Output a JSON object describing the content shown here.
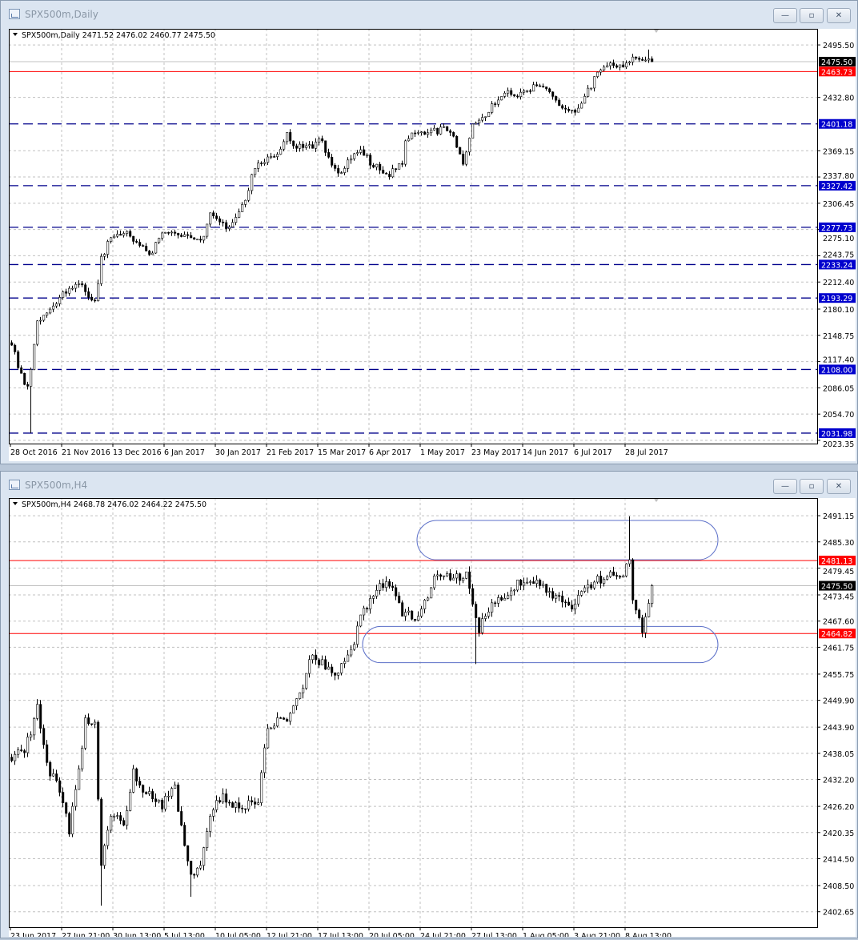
{
  "windows": [
    {
      "title": "SPX500m,Daily",
      "header": "SPX500m,Daily  2471.52 2476.02 2460.77 2475.50",
      "buttons": {
        "minimize": "—",
        "restore": "▫",
        "close": "✕"
      }
    },
    {
      "title": "SPX500m,H4",
      "header": "SPX500m,H4  2468.78 2476.02 2464.22 2475.50",
      "buttons": {
        "minimize": "—",
        "restore": "▫",
        "close": "✕"
      }
    }
  ],
  "colors": {
    "bid_line": "#c0c0c0",
    "red_line": "#ff0000",
    "blue_line": "#00008b",
    "grid": "#c0c0c0",
    "annotation": "#5b6fc8",
    "candle": "#000000"
  },
  "chart_data": [
    {
      "type": "candlestick",
      "symbol": "SPX500m",
      "timeframe": "Daily",
      "ohlc_last": {
        "open": 2471.52,
        "high": 2476.02,
        "low": 2460.77,
        "close": 2475.5
      },
      "ylim": [
        2019.5,
        2514.7
      ],
      "grid": true,
      "y_ticks": [
        "2495.50",
        "2432.80",
        "2369.15",
        "2337.80",
        "2306.45",
        "2275.10",
        "2243.75",
        "2212.40",
        "2180.10",
        "2148.75",
        "2117.40",
        "2086.05",
        "2054.70",
        "2023.35"
      ],
      "x_ticks": [
        "28 Oct 2016",
        "21 Nov 2016",
        "13 Dec 2016",
        "6 Jan 2017",
        "30 Jan 2017",
        "21 Feb 2017",
        "15 Mar 2017",
        "6 Apr 2017",
        "1 May 2017",
        "23 May 2017",
        "14 Jun 2017",
        "6 Jul 2017",
        "28 Jul 2017"
      ],
      "bars_per_x_tick": 16,
      "key_closes": [
        [
          0,
          2137
        ],
        [
          2,
          2110
        ],
        [
          4,
          2090
        ],
        [
          5,
          2088
        ],
        [
          6,
          2108
        ],
        [
          8,
          2166
        ],
        [
          12,
          2180
        ],
        [
          17,
          2199
        ],
        [
          22,
          2209
        ],
        [
          26,
          2190
        ],
        [
          28,
          2243
        ],
        [
          32,
          2267
        ],
        [
          37,
          2267
        ],
        [
          44,
          2247
        ],
        [
          47,
          2271
        ],
        [
          54,
          2269
        ],
        [
          60,
          2267
        ],
        [
          62,
          2295
        ],
        [
          67,
          2276
        ],
        [
          72,
          2305
        ],
        [
          76,
          2348
        ],
        [
          82,
          2362
        ],
        [
          86,
          2391
        ],
        [
          89,
          2372
        ],
        [
          94,
          2372
        ],
        [
          97,
          2381
        ],
        [
          101,
          2348
        ],
        [
          104,
          2348
        ],
        [
          108,
          2367
        ],
        [
          114,
          2353
        ],
        [
          118,
          2338
        ],
        [
          122,
          2353
        ],
        [
          123,
          2381
        ],
        [
          127,
          2391
        ],
        [
          132,
          2396
        ],
        [
          137,
          2391
        ],
        [
          141,
          2353
        ],
        [
          144,
          2401
        ],
        [
          149,
          2415
        ],
        [
          153,
          2434
        ],
        [
          159,
          2439
        ],
        [
          163,
          2448
        ],
        [
          169,
          2434
        ],
        [
          172,
          2420
        ],
        [
          177,
          2420
        ],
        [
          181,
          2444
        ],
        [
          183,
          2463
        ],
        [
          187,
          2474
        ],
        [
          192,
          2474
        ],
        [
          197,
          2477
        ],
        [
          200,
          2475.5
        ]
      ],
      "extreme_wicks": [
        [
          6,
          2032
        ],
        [
          199,
          2490
        ]
      ],
      "noise": 6,
      "price_lines": [
        {
          "value": "2475.50",
          "style": "bid",
          "color": "#c0c0c0",
          "tag_bg": "#000000"
        },
        {
          "value": "2463.73",
          "style": "solid",
          "color": "#ff0000",
          "tag_bg": "#ff0000"
        },
        {
          "value": "2401.18",
          "style": "dashed",
          "color": "#00008b",
          "tag_bg": "#0000cd"
        },
        {
          "value": "2327.42",
          "style": "dashed",
          "color": "#00008b",
          "tag_bg": "#0000cd"
        },
        {
          "value": "2277.73",
          "style": "dashed",
          "color": "#00008b",
          "tag_bg": "#0000cd"
        },
        {
          "value": "2233.24",
          "style": "dashed",
          "color": "#00008b",
          "tag_bg": "#0000cd"
        },
        {
          "value": "2193.29",
          "style": "dashed",
          "color": "#00008b",
          "tag_bg": "#0000cd"
        },
        {
          "value": "2108.00",
          "style": "dashed",
          "color": "#00008b",
          "tag_bg": "#0000cd"
        },
        {
          "value": "2031.98",
          "style": "dashed",
          "color": "#00008b",
          "tag_bg": "#0000cd"
        }
      ],
      "zones": []
    },
    {
      "type": "candlestick",
      "symbol": "SPX500m",
      "timeframe": "H4",
      "ohlc_last": {
        "open": 2468.78,
        "high": 2476.02,
        "low": 2464.22,
        "close": 2475.5
      },
      "ylim": [
        2399.2,
        2495.1
      ],
      "grid": true,
      "y_ticks": [
        "2491.15",
        "2485.30",
        "2479.45",
        "2473.45",
        "2467.60",
        "2461.75",
        "2455.75",
        "2449.90",
        "2443.90",
        "2438.05",
        "2432.20",
        "2426.20",
        "2420.35",
        "2414.50",
        "2408.50",
        "2402.65"
      ],
      "x_ticks": [
        "23 Jun 2017",
        "27 Jun 21:00",
        "30 Jun 13:00",
        "5 Jul 13:00",
        "10 Jul 05:00",
        "12 Jul 21:00",
        "17 Jul 13:00",
        "20 Jul 05:00",
        "24 Jul 21:00",
        "27 Jul 13:00",
        "1 Aug 05:00",
        "3 Aug 21:00",
        "8 Aug 13:00"
      ],
      "bars_per_x_tick": 16,
      "key_closes": [
        [
          0,
          2436.4
        ],
        [
          4,
          2438.2
        ],
        [
          8,
          2449
        ],
        [
          11,
          2436
        ],
        [
          16,
          2427
        ],
        [
          18,
          2420
        ],
        [
          21,
          2434.6
        ],
        [
          23,
          2446
        ],
        [
          26,
          2445
        ],
        [
          28,
          2413
        ],
        [
          31,
          2424
        ],
        [
          35,
          2422
        ],
        [
          38,
          2434.6
        ],
        [
          42,
          2429
        ],
        [
          47,
          2425.6
        ],
        [
          51,
          2431
        ],
        [
          53,
          2422
        ],
        [
          56,
          2411
        ],
        [
          59,
          2413
        ],
        [
          62,
          2424
        ],
        [
          66,
          2429
        ],
        [
          70,
          2427
        ],
        [
          73,
          2425.6
        ],
        [
          77,
          2427
        ],
        [
          80,
          2443.6
        ],
        [
          83,
          2446
        ],
        [
          87,
          2447
        ],
        [
          91,
          2452.6
        ],
        [
          93,
          2459
        ],
        [
          97,
          2459
        ],
        [
          102,
          2456
        ],
        [
          107,
          2462.4
        ],
        [
          110,
          2470.5
        ],
        [
          115,
          2476
        ],
        [
          120,
          2473.2
        ],
        [
          122,
          2468.7
        ],
        [
          127,
          2468.7
        ],
        [
          132,
          2477.7
        ],
        [
          137,
          2476.8
        ],
        [
          142,
          2478.6
        ],
        [
          146,
          2465
        ],
        [
          148,
          2468.7
        ],
        [
          153,
          2472.3
        ],
        [
          158,
          2476.8
        ],
        [
          163,
          2476
        ],
        [
          167,
          2474
        ],
        [
          171,
          2473.2
        ],
        [
          176,
          2471.4
        ],
        [
          181,
          2475
        ],
        [
          187,
          2478.6
        ],
        [
          191,
          2477.7
        ],
        [
          193,
          2481.3
        ],
        [
          194,
          2472.3
        ],
        [
          197,
          2465
        ],
        [
          200,
          2475.5
        ]
      ],
      "extreme_wicks": [
        [
          28,
          2404
        ],
        [
          56,
          2406
        ],
        [
          145,
          2458
        ],
        [
          193,
          2491
        ]
      ],
      "noise": 1.6,
      "price_lines": [
        {
          "value": "2481.13",
          "style": "solid",
          "color": "#ff0000",
          "tag_bg": "#ff0000"
        },
        {
          "value": "2475.50",
          "style": "bid",
          "color": "#c0c0c0",
          "tag_bg": "#000000"
        },
        {
          "value": "2464.82",
          "style": "solid",
          "color": "#ff0000",
          "tag_bg": "#ff0000"
        }
      ],
      "zones": [
        {
          "from_bar": 127,
          "to_bar": 221,
          "high": 2490.1,
          "low": 2481.3
        },
        {
          "from_bar": 110,
          "to_bar": 221,
          "high": 2466.4,
          "low": 2458.3
        }
      ]
    }
  ]
}
